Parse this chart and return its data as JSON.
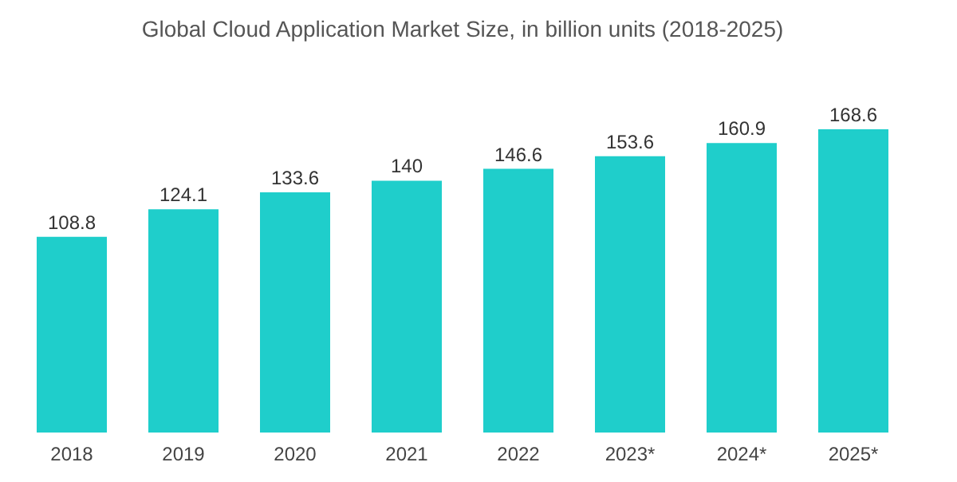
{
  "chart_data": {
    "type": "bar",
    "title": "Global Cloud Application Market Size, in billion units (2018-2025)",
    "categories": [
      "2018",
      "2019",
      "2020",
      "2021",
      "2022",
      "2023*",
      "2024*",
      "2025*"
    ],
    "values": [
      108.8,
      124.1,
      133.6,
      140,
      146.6,
      153.6,
      160.9,
      168.6
    ],
    "color": "#1fcecb",
    "data_labels": true
  }
}
